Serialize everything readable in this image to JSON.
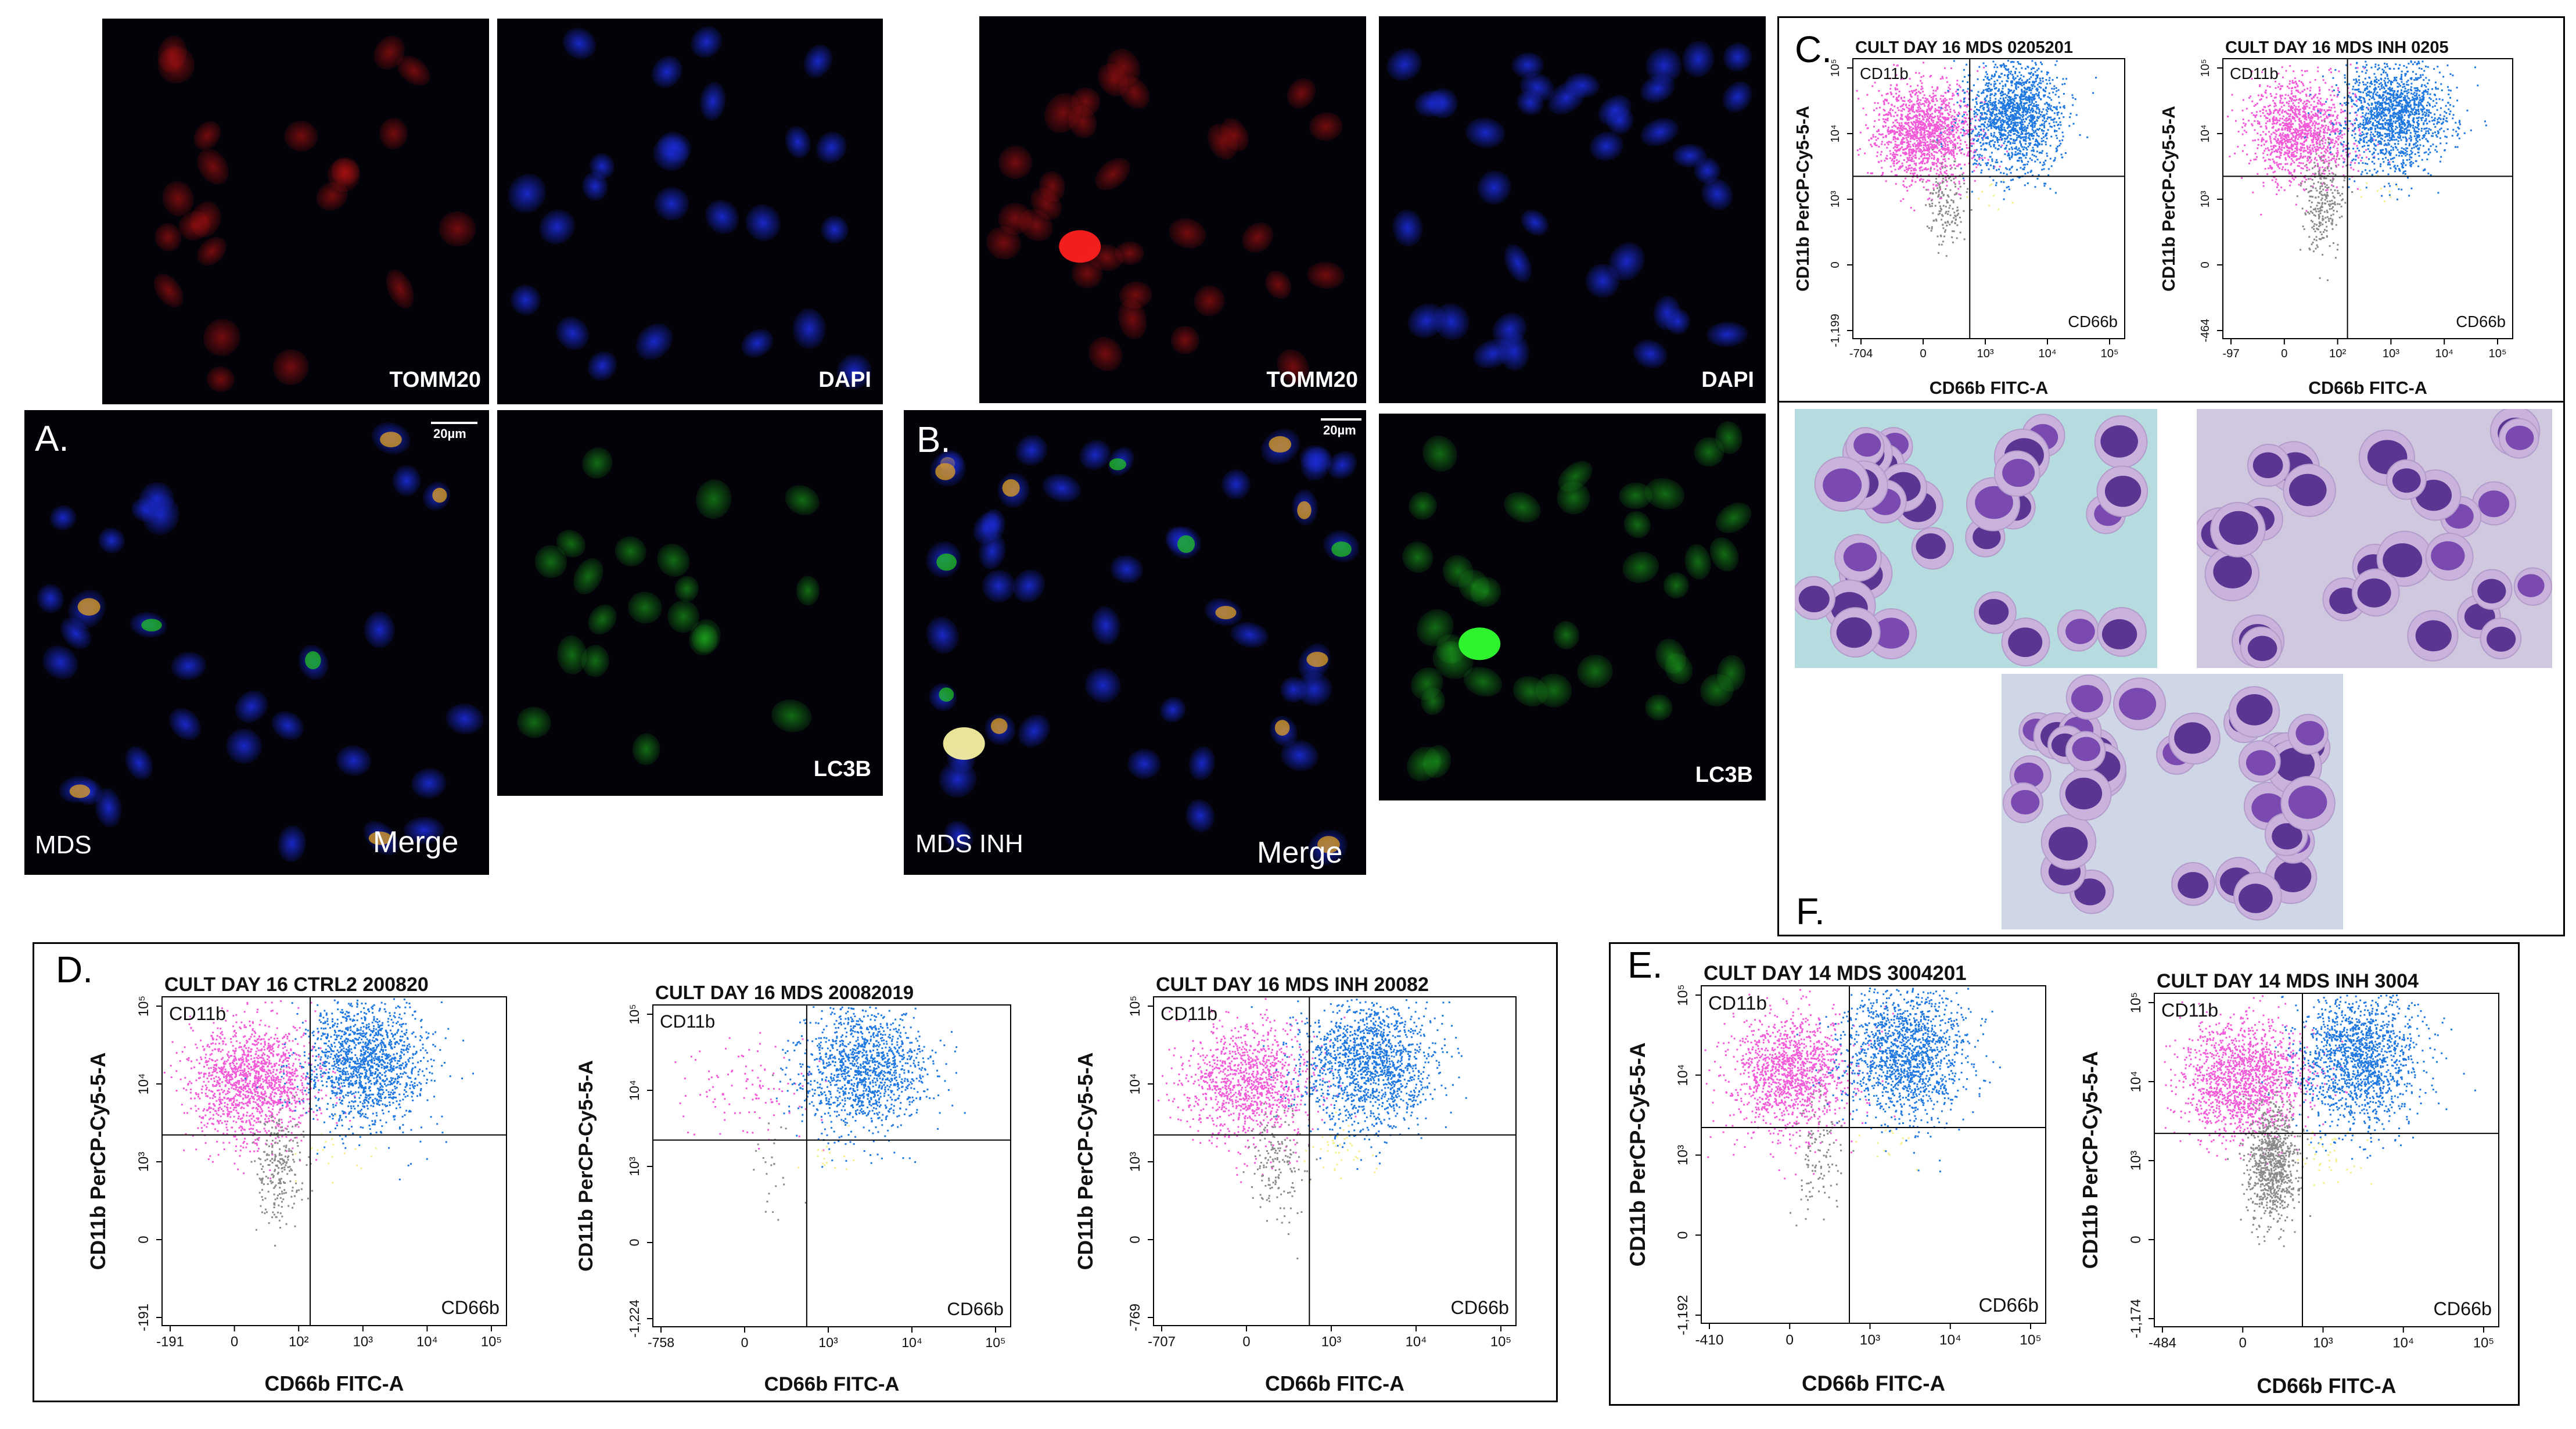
{
  "panels": {
    "A": {
      "letter": "A.",
      "tomm20_label": "TOMM20",
      "dapi_label": "DAPI",
      "lc3b_label": "LC3B",
      "sample_label": "MDS",
      "merge_label": "Merge",
      "scale_label": "20µm"
    },
    "B": {
      "letter": "B.",
      "tomm20_label": "TOMM20",
      "dapi_label": "DAPI",
      "lc3b_label": "LC3B",
      "sample_label": "MDS INH",
      "merge_label": "Merge",
      "scale_label": "20µm"
    },
    "C": {
      "letter": "C."
    },
    "D": {
      "letter": "D."
    },
    "E": {
      "letter": "E."
    },
    "F": {
      "letter": "F."
    }
  },
  "colors": {
    "cd11b_only": "#f25ad8",
    "double_positive": "#1f78e0",
    "negative": "#8a8a8a",
    "cd66b_only": "#f5f08c",
    "tomm20": "#d01414",
    "dapi": "#1a2ad0",
    "lc3b": "#20c020",
    "stain_background_1": "#b7dce0",
    "stain_background_2": "#cfc8df"
  },
  "flow_plots": [
    {
      "id": "C1",
      "panel": "C",
      "title": "CULT DAY 16  MDS  0205201",
      "y_label": "CD11b PerCP-Cy5-5-A",
      "x_label": "CD66b FITC-A",
      "q_upper_left": "CD11b",
      "q_lower_right": "CD66b",
      "y_ticks": [
        "10⁵",
        "10⁴",
        "10³",
        "0",
        "-1,199"
      ],
      "x_ticks": [
        "-704",
        "0",
        "10³",
        "10⁴",
        "10⁵"
      ],
      "events": {
        "cd11b_only": 1500,
        "double_positive": 4200,
        "negative": 160,
        "cd66b_only": 10
      }
    },
    {
      "id": "C2",
      "panel": "C",
      "title": "CULT DAY 16  MDS INH 0205",
      "y_label": "CD11b PerCP-Cy5-5-A",
      "x_label": "CD66b FITC-A",
      "q_upper_left": "CD11b",
      "q_lower_right": "CD66b",
      "y_ticks": [
        "10⁵",
        "10⁴",
        "10³",
        "0",
        "-464"
      ],
      "x_ticks": [
        "-97",
        "0",
        "10²",
        "10³",
        "10⁴",
        "10⁵"
      ],
      "events": {
        "cd11b_only": 1300,
        "double_positive": 3800,
        "negative": 260,
        "cd66b_only": 10
      }
    },
    {
      "id": "D1",
      "panel": "D",
      "title": "CULT DAY 16  CTRL2  200820",
      "y_label": "CD11b PerCP-Cy5-5-A",
      "x_label": "CD66b FITC-A",
      "q_upper_left": "CD11b",
      "q_lower_right": "CD66b",
      "y_ticks": [
        "10⁵",
        "10⁴",
        "10³",
        "0",
        "-191"
      ],
      "x_ticks": [
        "-191",
        "0",
        "10²",
        "10³",
        "10⁴",
        "10⁵"
      ],
      "events": {
        "cd11b_only": 2600,
        "double_positive": 3600,
        "negative": 240,
        "cd66b_only": 20
      }
    },
    {
      "id": "D2",
      "panel": "D",
      "title": "CULT DAY 16  MDS  20082019",
      "y_label": "CD11b PerCP-Cy5-5-A",
      "x_label": "CD66b FITC-A",
      "q_upper_left": "CD11b",
      "q_lower_right": "CD66b",
      "y_ticks": [
        "10⁵",
        "10⁴",
        "10³",
        "0",
        "-1,224"
      ],
      "x_ticks": [
        "-758",
        "0",
        "10³",
        "10⁴",
        "10⁵"
      ],
      "events": {
        "cd11b_only": 110,
        "double_positive": 1300,
        "negative": 25,
        "cd66b_only": 15
      }
    },
    {
      "id": "D3",
      "panel": "D",
      "title": "CULT DAY 16  MDS INH  20082",
      "y_label": "CD11b PerCP-Cy5-5-A",
      "x_label": "CD66b FITC-A",
      "q_upper_left": "CD11b",
      "q_lower_right": "CD66b",
      "y_ticks": [
        "10⁵",
        "10⁴",
        "10³",
        "0",
        "-769"
      ],
      "x_ticks": [
        "-707",
        "0",
        "10³",
        "10⁴",
        "10⁵"
      ],
      "events": {
        "cd11b_only": 1100,
        "double_positive": 1700,
        "negative": 160,
        "cd66b_only": 40
      }
    },
    {
      "id": "E1",
      "panel": "E",
      "title": "CULT DAY 14  MDS  3004201",
      "y_label": "CD11b PerCP-Cy5-5-A",
      "x_label": "CD66b FITC-A",
      "q_upper_left": "CD11b",
      "q_lower_right": "CD66b",
      "y_ticks": [
        "10⁵",
        "10⁴",
        "10³",
        "0",
        "-1,192"
      ],
      "x_ticks": [
        "-410",
        "0",
        "10³",
        "10⁴",
        "10⁵"
      ],
      "events": {
        "cd11b_only": 1300,
        "double_positive": 2800,
        "negative": 110,
        "cd66b_only": 15
      }
    },
    {
      "id": "E2",
      "panel": "E",
      "title": "CULT DAY 14  MDS INH  3004",
      "y_label": "CD11b PerCP-Cy5-5-A",
      "x_label": "CD66b FITC-A",
      "q_upper_left": "CD11b",
      "q_lower_right": "CD66b",
      "y_ticks": [
        "10⁵",
        "10⁴",
        "10³",
        "0",
        "-1,174"
      ],
      "x_ticks": [
        "-484",
        "0",
        "10³",
        "10⁴",
        "10⁵"
      ],
      "events": {
        "cd11b_only": 2100,
        "double_positive": 3700,
        "negative": 850,
        "cd66b_only": 40
      }
    }
  ]
}
